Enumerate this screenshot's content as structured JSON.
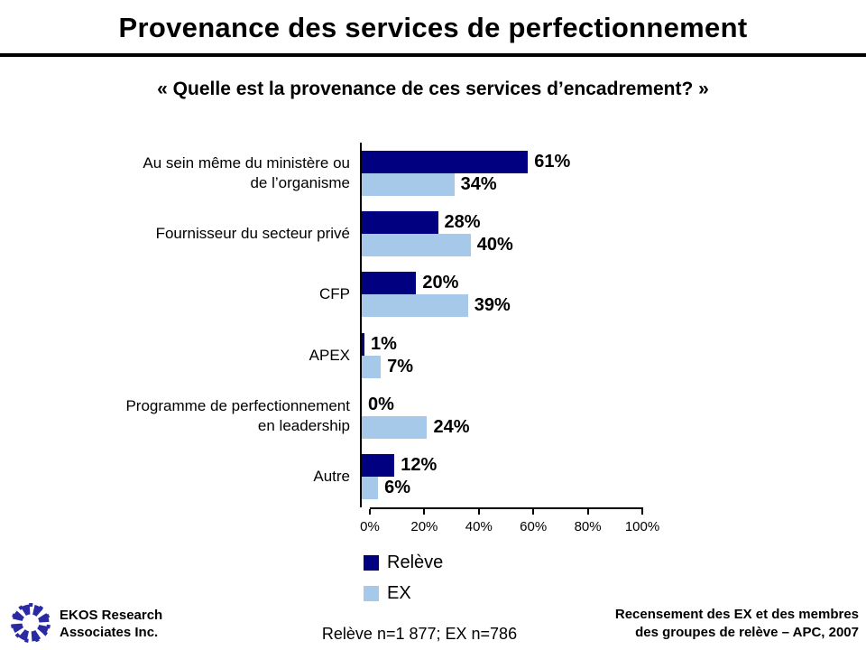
{
  "title": "Provenance des services de perfectionnement",
  "subtitle": "« Quelle est la provenance de ces services d’encadrement? »",
  "chart_data": {
    "type": "bar",
    "orientation": "horizontal",
    "categories": [
      "Au sein même du ministère ou\nde l’organisme",
      "Fournisseur du secteur privé",
      "CFP",
      "APEX",
      "Programme de perfectionnement\nen leadership",
      "Autre"
    ],
    "series": [
      {
        "name": "Relève",
        "color": "#000080",
        "values": [
          61,
          28,
          20,
          1,
          0,
          12
        ]
      },
      {
        "name": "EX",
        "color": "#A6C9EA",
        "values": [
          34,
          40,
          39,
          7,
          24,
          6
        ]
      }
    ],
    "value_suffix": "%",
    "xlim": [
      0,
      100
    ],
    "x_ticks": [
      "0%",
      "20%",
      "40%",
      "60%",
      "80%",
      "100%"
    ],
    "grid": false,
    "legend_position": "bottom-left"
  },
  "legend": {
    "items": [
      {
        "label": "Relève",
        "color": "#000080"
      },
      {
        "label": "EX",
        "color": "#A6C9EA"
      }
    ]
  },
  "footer": {
    "logo_icon": "ekos-pinwheel-logo",
    "logo_color": "#2A2AA4",
    "org_name": "EKOS Research\nAssociates Inc.",
    "sample_note": "Relève n=1 877; EX n=786",
    "source": "Recensement des EX et des membres\ndes groupes de relève – APC, 2007"
  }
}
